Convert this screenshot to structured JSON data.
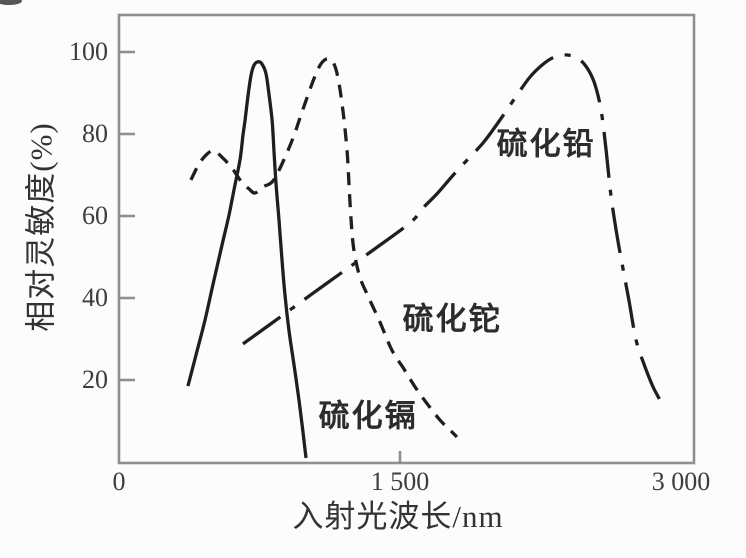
{
  "page": {
    "background": "#fcfcfc"
  },
  "colors": {
    "curve": "#1f1f1f",
    "axis": "#8f8f8f",
    "tick_text": "#3c3c3c",
    "label_text": "#2c2c2c"
  },
  "chart_data": {
    "type": "line",
    "title": "",
    "xlabel": "入射光波长/nm",
    "ylabel": "相对灵敏度(%)",
    "xlim": [
      0,
      3070
    ],
    "ylim": [
      0,
      109
    ],
    "grid": false,
    "legend": "none (labels annotated on curves)",
    "x_ticks": [
      {
        "value": 0,
        "label": "0",
        "mark": false
      },
      {
        "value": 1500,
        "label": "1 500",
        "mark": true
      },
      {
        "value": 3000,
        "label": "3 000",
        "mark": false
      }
    ],
    "y_ticks": [
      {
        "value": 20,
        "label": "20",
        "mark": true
      },
      {
        "value": 40,
        "label": "40",
        "mark": true
      },
      {
        "value": 60,
        "label": "60",
        "mark": true
      },
      {
        "value": 80,
        "label": "80",
        "mark": true
      },
      {
        "value": 100,
        "label": "100",
        "mark": true
      }
    ],
    "series": [
      {
        "id": "cadmium-sulfide",
        "name": "硫化镉",
        "line_style": "solid",
        "points": [
          [
            368,
            18.5
          ],
          [
            411,
            26.1
          ],
          [
            459,
            34.6
          ],
          [
            507,
            44.4
          ],
          [
            550,
            52.9
          ],
          [
            587,
            60.2
          ],
          [
            619,
            67.6
          ],
          [
            646,
            73.7
          ],
          [
            662,
            79.8
          ],
          [
            673,
            83.4
          ],
          [
            689,
            89.5
          ],
          [
            705,
            94.4
          ],
          [
            721,
            96.8
          ],
          [
            742,
            97.6
          ],
          [
            763,
            97.1
          ],
          [
            785,
            94.6
          ],
          [
            801,
            89.5
          ],
          [
            817,
            83.4
          ],
          [
            827,
            76.1
          ],
          [
            838,
            68.0
          ],
          [
            854,
            59.0
          ],
          [
            870,
            49.3
          ],
          [
            886,
            40.7
          ],
          [
            907,
            32.2
          ],
          [
            934,
            23.7
          ],
          [
            961,
            15.1
          ],
          [
            982,
            7.3
          ],
          [
            998,
            1.0
          ]
        ]
      },
      {
        "id": "thallium-sulfide",
        "name": "硫化铊",
        "line_style": "dashed",
        "points": [
          [
            384,
            68.8
          ],
          [
            427,
            72.7
          ],
          [
            470,
            75.1
          ],
          [
            507,
            75.9
          ],
          [
            555,
            74.1
          ],
          [
            603,
            71.7
          ],
          [
            651,
            68.5
          ],
          [
            694,
            66.6
          ],
          [
            726,
            65.6
          ],
          [
            769,
            67.1
          ],
          [
            817,
            68.3
          ],
          [
            860,
            71.7
          ],
          [
            929,
            79.0
          ],
          [
            971,
            84.6
          ],
          [
            1014,
            90.2
          ],
          [
            1046,
            94.1
          ],
          [
            1078,
            97.1
          ],
          [
            1110,
            98.3
          ],
          [
            1142,
            97.6
          ],
          [
            1169,
            93.7
          ],
          [
            1196,
            85.4
          ],
          [
            1217,
            76.1
          ],
          [
            1228,
            67.6
          ],
          [
            1239,
            59.0
          ],
          [
            1254,
            51.7
          ],
          [
            1286,
            45.1
          ],
          [
            1334,
            40.0
          ],
          [
            1393,
            34.1
          ],
          [
            1457,
            27.3
          ],
          [
            1521,
            22.7
          ],
          [
            1585,
            18.0
          ],
          [
            1650,
            13.9
          ],
          [
            1714,
            10.2
          ],
          [
            1767,
            7.8
          ],
          [
            1804,
            6.1
          ]
        ]
      },
      {
        "id": "lead-sulfide",
        "name": "硫化铅",
        "line_style": "dashdot",
        "points": [
          [
            662,
            28.8
          ],
          [
            880,
            36.0
          ],
          [
            1100,
            43.3
          ],
          [
            1320,
            50.5
          ],
          [
            1553,
            58.3
          ],
          [
            1617,
            61.7
          ],
          [
            1697,
            65.4
          ],
          [
            1794,
            70.5
          ],
          [
            1874,
            74.4
          ],
          [
            1943,
            77.8
          ],
          [
            2007,
            81.7
          ],
          [
            2071,
            85.9
          ],
          [
            2135,
            90.2
          ],
          [
            2194,
            93.9
          ],
          [
            2253,
            96.6
          ],
          [
            2311,
            98.5
          ],
          [
            2370,
            99.3
          ],
          [
            2434,
            98.8
          ],
          [
            2488,
            96.8
          ],
          [
            2536,
            92.7
          ],
          [
            2573,
            85.9
          ],
          [
            2600,
            76.1
          ],
          [
            2626,
            65.1
          ],
          [
            2658,
            55.4
          ],
          [
            2690,
            47.3
          ],
          [
            2722,
            39.5
          ],
          [
            2760,
            29.8
          ],
          [
            2808,
            23.2
          ],
          [
            2851,
            18.3
          ],
          [
            2888,
            15.1
          ]
        ]
      }
    ],
    "annotations": [
      {
        "id": "cadmium-sulfide",
        "text": "硫化镉",
        "x": 1330,
        "y": 12.0
      },
      {
        "id": "thallium-sulfide",
        "text": "硫化铊",
        "x": 1778,
        "y": 35.6
      },
      {
        "id": "lead-sulfide",
        "text": "硫化铅",
        "x": 2280,
        "y": 78.3
      }
    ]
  }
}
